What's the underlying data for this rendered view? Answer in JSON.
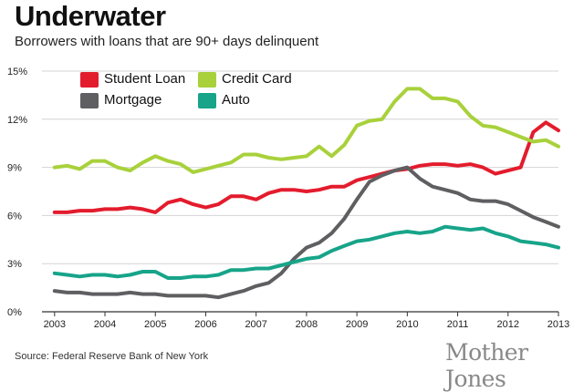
{
  "title": "Underwater",
  "subtitle": "Borrowers with loans that are 90+ days delinquent",
  "source": "Source: Federal Reserve Bank of New York",
  "logo": "Mother Jones",
  "chart_data": {
    "type": "line",
    "title": "Underwater",
    "subtitle": "Borrowers with loans that are 90+ days delinquent",
    "xlabel": "",
    "ylabel": "",
    "xlim": [
      2002.75,
      2013.0
    ],
    "ylim": [
      0,
      15
    ],
    "y_ticks": [
      0,
      3,
      6,
      9,
      12,
      15
    ],
    "y_tick_labels": [
      "0%",
      "3%",
      "6%",
      "9%",
      "12%",
      "15%"
    ],
    "x_ticks": [
      2003,
      2004,
      2005,
      2006,
      2007,
      2008,
      2009,
      2010,
      2011,
      2012,
      2013
    ],
    "x_tick_labels": [
      "2003",
      "2004",
      "2005",
      "2006",
      "2007",
      "2008",
      "2009",
      "2010",
      "2011",
      "2012",
      "2013"
    ],
    "grid": "horizontal",
    "legend_position": "top-left",
    "x": [
      2003.0,
      2003.25,
      2003.5,
      2003.75,
      2004.0,
      2004.25,
      2004.5,
      2004.75,
      2005.0,
      2005.25,
      2005.5,
      2005.75,
      2006.0,
      2006.25,
      2006.5,
      2006.75,
      2007.0,
      2007.25,
      2007.5,
      2007.75,
      2008.0,
      2008.25,
      2008.5,
      2008.75,
      2009.0,
      2009.25,
      2009.5,
      2009.75,
      2010.0,
      2010.25,
      2010.5,
      2010.75,
      2011.0,
      2011.25,
      2011.5,
      2011.75,
      2012.0,
      2012.25,
      2012.5,
      2012.75,
      2013.0
    ],
    "series": [
      {
        "name": "Student Loan",
        "color": "#e31c2d",
        "values": [
          6.2,
          6.2,
          6.3,
          6.3,
          6.4,
          6.4,
          6.5,
          6.4,
          6.2,
          6.8,
          7.0,
          6.7,
          6.5,
          6.7,
          7.2,
          7.2,
          7.0,
          7.4,
          7.6,
          7.6,
          7.5,
          7.6,
          7.8,
          7.8,
          8.2,
          8.4,
          8.6,
          8.8,
          8.9,
          9.1,
          9.2,
          9.2,
          9.1,
          9.2,
          9.0,
          8.6,
          8.8,
          9.0,
          11.2,
          11.8,
          11.3
        ]
      },
      {
        "name": "Credit Card",
        "color": "#a8d13b",
        "values": [
          9.0,
          9.1,
          8.9,
          9.4,
          9.4,
          9.0,
          8.8,
          9.3,
          9.7,
          9.4,
          9.2,
          8.7,
          8.9,
          9.1,
          9.3,
          9.8,
          9.8,
          9.6,
          9.5,
          9.6,
          9.7,
          10.3,
          9.7,
          10.4,
          11.6,
          11.9,
          12.0,
          13.1,
          13.9,
          13.9,
          13.3,
          13.3,
          13.1,
          12.2,
          11.6,
          11.5,
          11.2,
          10.9,
          10.6,
          10.7,
          10.3
        ]
      },
      {
        "name": "Mortgage",
        "color": "#5f5f62",
        "values": [
          1.3,
          1.2,
          1.2,
          1.1,
          1.1,
          1.1,
          1.2,
          1.1,
          1.1,
          1.0,
          1.0,
          1.0,
          1.0,
          0.9,
          1.1,
          1.3,
          1.6,
          1.8,
          2.4,
          3.3,
          4.0,
          4.3,
          4.9,
          5.8,
          7.0,
          8.1,
          8.5,
          8.8,
          9.0,
          8.3,
          7.8,
          7.6,
          7.4,
          7.0,
          6.9,
          6.9,
          6.7,
          6.3,
          5.9,
          5.6,
          5.3
        ]
      },
      {
        "name": "Auto",
        "color": "#17a489",
        "values": [
          2.4,
          2.3,
          2.2,
          2.3,
          2.3,
          2.2,
          2.3,
          2.5,
          2.5,
          2.1,
          2.1,
          2.2,
          2.2,
          2.3,
          2.6,
          2.6,
          2.7,
          2.7,
          2.9,
          3.1,
          3.3,
          3.4,
          3.8,
          4.1,
          4.4,
          4.5,
          4.7,
          4.9,
          5.0,
          4.9,
          5.0,
          5.3,
          5.2,
          5.1,
          5.2,
          4.9,
          4.7,
          4.4,
          4.3,
          4.2,
          4.0
        ]
      }
    ]
  }
}
